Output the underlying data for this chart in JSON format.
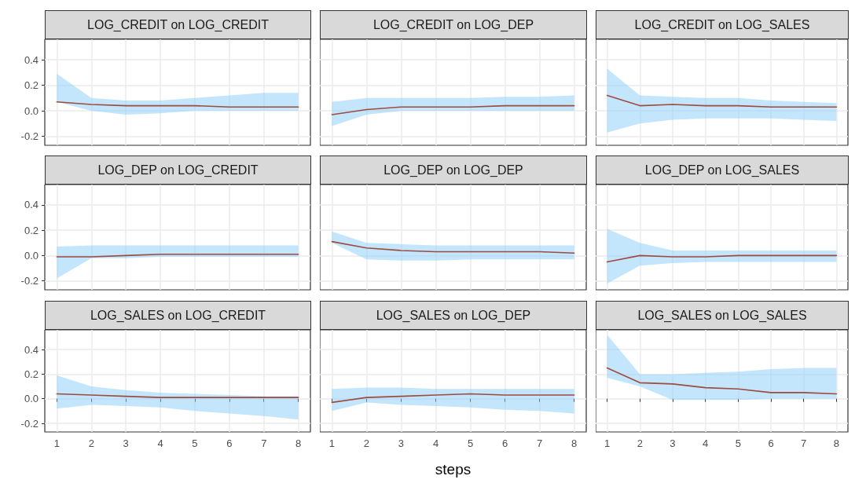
{
  "chart_data": [
    {
      "type": "line",
      "title": "LOG_CREDIT on LOG_CREDIT",
      "x": [
        1,
        2,
        3,
        4,
        5,
        6,
        7,
        8
      ],
      "xlim": [
        0.65,
        8.35
      ],
      "ylim": [
        -0.27,
        0.56
      ],
      "xticks": [
        1,
        2,
        3,
        4,
        5,
        6,
        7,
        8
      ],
      "yticks": [
        {
          "value": -0.2,
          "label": "-0.2"
        },
        {
          "value": 0,
          "label": "0.0"
        },
        {
          "value": 0.2,
          "label": "0.2"
        },
        {
          "value": 0.4,
          "label": "0.4"
        }
      ],
      "grid": true,
      "marker": "none",
      "line_style": "solid",
      "tick_labels": "y",
      "series": [
        {
          "color": "#9e4a3f",
          "values": [
            0.07,
            0.05,
            0.04,
            0.04,
            0.04,
            0.03,
            0.03,
            0.03
          ],
          "lower": [
            0.07,
            0.0,
            -0.03,
            -0.02,
            0.0,
            0.0,
            0.0,
            0.0
          ],
          "upper": [
            0.29,
            0.1,
            0.08,
            0.08,
            0.1,
            0.12,
            0.14,
            0.14
          ]
        }
      ]
    },
    {
      "type": "line",
      "title": "LOG_CREDIT on LOG_DEP",
      "x": [
        1,
        2,
        3,
        4,
        5,
        6,
        7,
        8
      ],
      "xlim": [
        0.65,
        8.35
      ],
      "ylim": [
        -0.27,
        0.56
      ],
      "xticks": [
        1,
        2,
        3,
        4,
        5,
        6,
        7,
        8
      ],
      "yticks": [
        -0.2,
        0,
        0.2,
        0.4
      ],
      "grid": true,
      "marker": "none",
      "line_style": "solid",
      "tick_labels": false,
      "series": [
        {
          "color": "#9e4a3f",
          "values": [
            -0.03,
            0.01,
            0.03,
            0.03,
            0.03,
            0.04,
            0.04,
            0.04
          ],
          "lower": [
            -0.12,
            -0.03,
            0.0,
            0.0,
            0.0,
            0.0,
            0.0,
            0.0
          ],
          "upper": [
            0.07,
            0.1,
            0.1,
            0.1,
            0.1,
            0.11,
            0.11,
            0.12
          ]
        }
      ]
    },
    {
      "type": "line",
      "title": "LOG_CREDIT on LOG_SALES",
      "x": [
        1,
        2,
        3,
        4,
        5,
        6,
        7,
        8
      ],
      "xlim": [
        0.65,
        8.35
      ],
      "ylim": [
        -0.27,
        0.56
      ],
      "xticks": [
        1,
        2,
        3,
        4,
        5,
        6,
        7,
        8
      ],
      "yticks": [
        -0.2,
        0,
        0.2,
        0.4
      ],
      "grid": true,
      "marker": "none",
      "line_style": "solid",
      "tick_labels": false,
      "series": [
        {
          "color": "#9e4a3f",
          "values": [
            0.12,
            0.04,
            0.05,
            0.04,
            0.04,
            0.03,
            0.03,
            0.03
          ],
          "lower": [
            -0.17,
            -0.1,
            -0.07,
            -0.06,
            -0.06,
            -0.06,
            -0.07,
            -0.08
          ],
          "upper": [
            0.33,
            0.12,
            0.11,
            0.1,
            0.1,
            0.08,
            0.07,
            0.06
          ]
        }
      ]
    },
    {
      "type": "line",
      "title": "LOG_DEP on LOG_CREDIT",
      "x": [
        1,
        2,
        3,
        4,
        5,
        6,
        7,
        8
      ],
      "xlim": [
        0.65,
        8.35
      ],
      "ylim": [
        -0.27,
        0.56
      ],
      "xticks": [
        1,
        2,
        3,
        4,
        5,
        6,
        7,
        8
      ],
      "yticks": [
        {
          "value": -0.2,
          "label": "-0.2"
        },
        {
          "value": 0,
          "label": "0.0"
        },
        {
          "value": 0.2,
          "label": "0.2"
        },
        {
          "value": 0.4,
          "label": "0.4"
        }
      ],
      "grid": true,
      "marker": "none",
      "line_style": "solid",
      "tick_labels": "y",
      "series": [
        {
          "color": "#9e4a3f",
          "values": [
            -0.01,
            -0.01,
            0.0,
            0.01,
            0.01,
            0.01,
            0.01,
            0.01
          ],
          "lower": [
            -0.18,
            -0.02,
            -0.02,
            -0.01,
            -0.01,
            -0.01,
            -0.01,
            -0.01
          ],
          "upper": [
            0.07,
            0.08,
            0.08,
            0.08,
            0.08,
            0.08,
            0.08,
            0.08
          ]
        }
      ]
    },
    {
      "type": "line",
      "title": "LOG_DEP on LOG_DEP",
      "x": [
        1,
        2,
        3,
        4,
        5,
        6,
        7,
        8
      ],
      "xlim": [
        0.65,
        8.35
      ],
      "ylim": [
        -0.27,
        0.56
      ],
      "xticks": [
        1,
        2,
        3,
        4,
        5,
        6,
        7,
        8
      ],
      "yticks": [
        -0.2,
        0,
        0.2,
        0.4
      ],
      "grid": true,
      "marker": "none",
      "line_style": "solid",
      "tick_labels": false,
      "series": [
        {
          "color": "#9e4a3f",
          "values": [
            0.11,
            0.06,
            0.04,
            0.03,
            0.03,
            0.03,
            0.03,
            0.02
          ],
          "lower": [
            0.1,
            -0.03,
            -0.04,
            -0.04,
            -0.03,
            -0.03,
            -0.03,
            -0.03
          ],
          "upper": [
            0.19,
            0.1,
            0.09,
            0.08,
            0.08,
            0.08,
            0.08,
            0.08
          ]
        }
      ]
    },
    {
      "type": "line",
      "title": "LOG_DEP on LOG_SALES",
      "x": [
        1,
        2,
        3,
        4,
        5,
        6,
        7,
        8
      ],
      "xlim": [
        0.65,
        8.35
      ],
      "ylim": [
        -0.27,
        0.56
      ],
      "xticks": [
        1,
        2,
        3,
        4,
        5,
        6,
        7,
        8
      ],
      "yticks": [
        -0.2,
        0,
        0.2,
        0.4
      ],
      "grid": true,
      "marker": "none",
      "line_style": "solid",
      "tick_labels": false,
      "series": [
        {
          "color": "#9e4a3f",
          "values": [
            -0.05,
            0.0,
            -0.01,
            -0.01,
            0.0,
            0.0,
            0.0,
            0.0
          ],
          "lower": [
            -0.22,
            -0.08,
            -0.06,
            -0.05,
            -0.05,
            -0.05,
            -0.05,
            -0.05
          ],
          "upper": [
            0.21,
            0.1,
            0.04,
            0.04,
            0.04,
            0.04,
            0.04,
            0.04
          ]
        }
      ]
    },
    {
      "type": "line",
      "title": "LOG_SALES on LOG_CREDIT",
      "x": [
        1,
        2,
        3,
        4,
        5,
        6,
        7,
        8
      ],
      "xlim": [
        0.65,
        8.35
      ],
      "ylim": [
        -0.27,
        0.56
      ],
      "xticks": [
        1,
        2,
        3,
        4,
        5,
        6,
        7,
        8
      ],
      "yticks": [
        {
          "value": -0.2,
          "label": "-0.2"
        },
        {
          "value": 0,
          "label": "0.0"
        },
        {
          "value": 0.2,
          "label": "0.2"
        },
        {
          "value": 0.4,
          "label": "0.4"
        }
      ],
      "grid": true,
      "marker": "none",
      "line_style": "solid",
      "series": [
        {
          "color": "#9e4a3f",
          "values": [
            0.04,
            0.03,
            0.02,
            0.01,
            0.01,
            0.01,
            0.01,
            0.01
          ],
          "lower": [
            -0.08,
            -0.05,
            -0.06,
            -0.07,
            -0.1,
            -0.12,
            -0.14,
            -0.17
          ],
          "upper": [
            0.19,
            0.1,
            0.07,
            0.05,
            0.04,
            0.03,
            0.02,
            0.02
          ]
        }
      ]
    },
    {
      "type": "line",
      "title": "LOG_SALES on LOG_DEP",
      "xlabel": "steps",
      "x": [
        1,
        2,
        3,
        4,
        5,
        6,
        7,
        8
      ],
      "xlim": [
        0.65,
        8.35
      ],
      "ylim": [
        -0.27,
        0.56
      ],
      "xticks": [
        1,
        2,
        3,
        4,
        5,
        6,
        7,
        8
      ],
      "yticks": [
        -0.2,
        0,
        0.2,
        0.4
      ],
      "grid": true,
      "marker": "none",
      "line_style": "solid",
      "tick_labels": "x",
      "series": [
        {
          "color": "#9e4a3f",
          "values": [
            -0.03,
            0.01,
            0.02,
            0.03,
            0.04,
            0.03,
            0.03,
            0.03
          ],
          "lower": [
            -0.1,
            -0.03,
            -0.05,
            -0.06,
            -0.07,
            -0.09,
            -0.1,
            -0.12
          ],
          "upper": [
            0.08,
            0.09,
            0.09,
            0.08,
            0.08,
            0.08,
            0.08,
            0.08
          ]
        }
      ]
    },
    {
      "type": "line",
      "title": "LOG_SALES on LOG_SALES",
      "x": [
        1,
        2,
        3,
        4,
        5,
        6,
        7,
        8
      ],
      "xlim": [
        0.65,
        8.35
      ],
      "ylim": [
        -0.27,
        0.56
      ],
      "xticks": [
        1,
        2,
        3,
        4,
        5,
        6,
        7,
        8
      ],
      "yticks": [
        -0.2,
        0,
        0.2,
        0.4
      ],
      "grid": true,
      "marker": "none",
      "line_style": "solid",
      "tick_labels": "x",
      "series": [
        {
          "color": "#9e4a3f",
          "values": [
            0.25,
            0.13,
            0.12,
            0.09,
            0.08,
            0.05,
            0.05,
            0.04
          ],
          "lower": [
            0.17,
            0.1,
            -0.01,
            -0.01,
            -0.01,
            0.0,
            0.0,
            0.0
          ],
          "upper": [
            0.52,
            0.2,
            0.2,
            0.21,
            0.22,
            0.24,
            0.25,
            0.25
          ]
        }
      ]
    }
  ]
}
